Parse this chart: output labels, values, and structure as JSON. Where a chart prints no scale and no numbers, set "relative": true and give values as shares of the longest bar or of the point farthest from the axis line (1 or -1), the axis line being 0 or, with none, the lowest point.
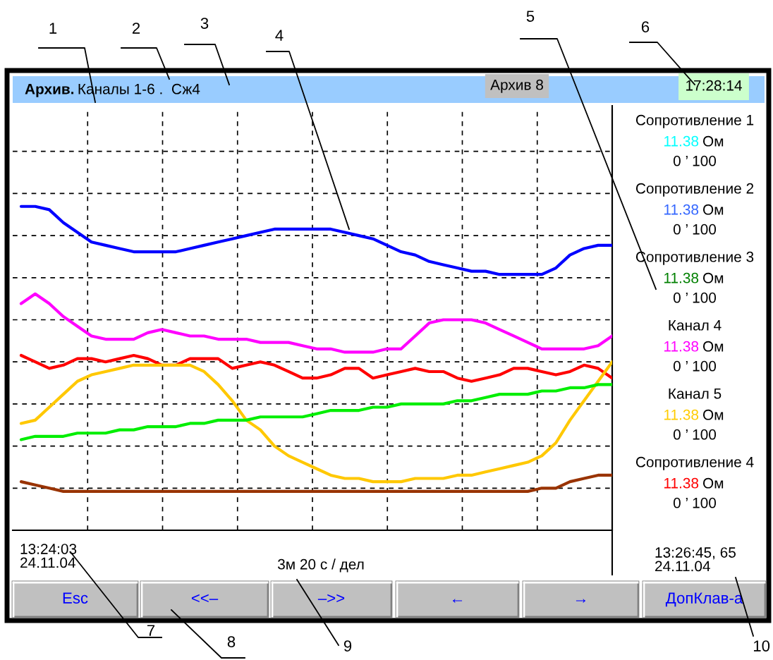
{
  "chart_data": [
    {
      "type": "line",
      "title": "Архив.",
      "subtitle": "Каналы 1-6 .  Сж4",
      "xlabel": "3м 20 с / дел",
      "relative": true,
      "grid": true,
      "categories": [
        null,
        null,
        null,
        null,
        null,
        null,
        null,
        null,
        null,
        null,
        null,
        null,
        null,
        null,
        null,
        null,
        null,
        null,
        null,
        null,
        null,
        null,
        null,
        null,
        null,
        null,
        null,
        null,
        null,
        null,
        null,
        null,
        null,
        null,
        null,
        null,
        null,
        null,
        null,
        null,
        null,
        null,
        null
      ],
      "series": [
        {
          "color": "#0000ff",
          "values": [
            1.0,
            1,
            0.99,
            0.95,
            0.92,
            0.89,
            0.88,
            0.87,
            0.86,
            0.86,
            0.86,
            0.86,
            0.87,
            0.88,
            0.89,
            0.9,
            0.91,
            0.92,
            0.93,
            0.93,
            0.93,
            0.93,
            0.93,
            0.92,
            0.91,
            0.9,
            0.88,
            0.86,
            0.85,
            0.83,
            0.82,
            0.81,
            0.8,
            0.8,
            0.79,
            0.79,
            0.79,
            0.79,
            0.81,
            0.85,
            0.87,
            0.88,
            0.88
          ]
        },
        {
          "color": "#ff00ff",
          "values": [
            0.7,
            0.73,
            0.7,
            0.66,
            0.63,
            0.6,
            0.59,
            0.59,
            0.59,
            0.61,
            0.62,
            0.61,
            0.6,
            0.6,
            0.59,
            0.59,
            0.59,
            0.58,
            0.58,
            0.58,
            0.57,
            0.56,
            0.56,
            0.55,
            0.55,
            0.55,
            0.56,
            0.56,
            0.6,
            0.64,
            0.65,
            0.65,
            0.65,
            0.64,
            0.62,
            0.6,
            0.58,
            0.56,
            0.56,
            0.56,
            0.56,
            0.57,
            0.6
          ]
        },
        {
          "color": "#ff0000",
          "values": [
            0.54,
            0.52,
            0.5,
            0.51,
            0.53,
            0.53,
            0.52,
            0.53,
            0.54,
            0.53,
            0.51,
            0.51,
            0.53,
            0.53,
            0.53,
            0.5,
            0.51,
            0.52,
            0.51,
            0.49,
            0.47,
            0.47,
            0.48,
            0.5,
            0.5,
            0.47,
            0.48,
            0.49,
            0.5,
            0.49,
            0.49,
            0.47,
            0.46,
            0.47,
            0.48,
            0.5,
            0.5,
            0.49,
            0.48,
            0.49,
            0.51,
            0.5,
            0.47
          ]
        },
        {
          "color": "#ffc800",
          "values": [
            0.33,
            0.34,
            0.38,
            0.42,
            0.46,
            0.48,
            0.49,
            0.5,
            0.51,
            0.51,
            0.51,
            0.51,
            0.51,
            0.49,
            0.45,
            0.4,
            0.34,
            0.31,
            0.26,
            0.23,
            0.21,
            0.19,
            0.17,
            0.16,
            0.16,
            0.15,
            0.15,
            0.15,
            0.16,
            0.16,
            0.16,
            0.17,
            0.17,
            0.18,
            0.19,
            0.2,
            0.21,
            0.23,
            0.27,
            0.34,
            0.4,
            0.46,
            0.52
          ]
        },
        {
          "color": "#00ee00",
          "values": [
            0.28,
            0.29,
            0.29,
            0.29,
            0.3,
            0.3,
            0.3,
            0.31,
            0.31,
            0.32,
            0.32,
            0.32,
            0.33,
            0.33,
            0.34,
            0.34,
            0.34,
            0.35,
            0.35,
            0.35,
            0.35,
            0.36,
            0.37,
            0.37,
            0.37,
            0.38,
            0.38,
            0.39,
            0.39,
            0.39,
            0.39,
            0.4,
            0.4,
            0.41,
            0.42,
            0.42,
            0.42,
            0.43,
            0.43,
            0.44,
            0.44,
            0.45,
            0.45
          ]
        },
        {
          "color": "#993300",
          "values": [
            0.15,
            0.14,
            0.13,
            0.12,
            0.12,
            0.12,
            0.12,
            0.12,
            0.12,
            0.12,
            0.12,
            0.12,
            0.12,
            0.12,
            0.12,
            0.12,
            0.12,
            0.12,
            0.12,
            0.12,
            0.12,
            0.12,
            0.12,
            0.12,
            0.12,
            0.12,
            0.12,
            0.12,
            0.12,
            0.12,
            0.12,
            0.12,
            0.12,
            0.12,
            0.12,
            0.12,
            0.12,
            0.13,
            0.13,
            0.15,
            0.16,
            0.17,
            0.17
          ]
        }
      ],
      "annotations": [
        "Архив 8",
        "17:28:14",
        "13:24:03\n24.11.04",
        "13:26:45, 65\n24.11.04",
        "Esc",
        "<<–",
        "–>>",
        "←",
        "→",
        "ДопКлав-а",
        "1",
        "2",
        "3",
        "4",
        "5",
        "6",
        "7",
        "8",
        "9",
        "10"
      ]
    },
    {
      "type": "other",
      "colors": [
        "#00ffff",
        "#3366ff",
        "#008000",
        "#ff00ff",
        "#ffcc00",
        "#ff0000"
      ],
      "annotations": [
        "Сопротивление 1",
        "11.38",
        "Ом",
        "0 ’ 100",
        "Сопротивление 2",
        "11.38",
        "Ом",
        "0 ’ 100",
        "Сопротивление 3",
        "11.38",
        "Ом",
        "0 ’ 100",
        "Канал 4",
        "11.38",
        "Ом",
        "0 ’ 100",
        "Канал 5",
        "11.38",
        "Ом",
        "0 ’ 100",
        "Сопротивление 4",
        "11.38",
        "Ом",
        "0 ’ 100"
      ]
    }
  ]
}
